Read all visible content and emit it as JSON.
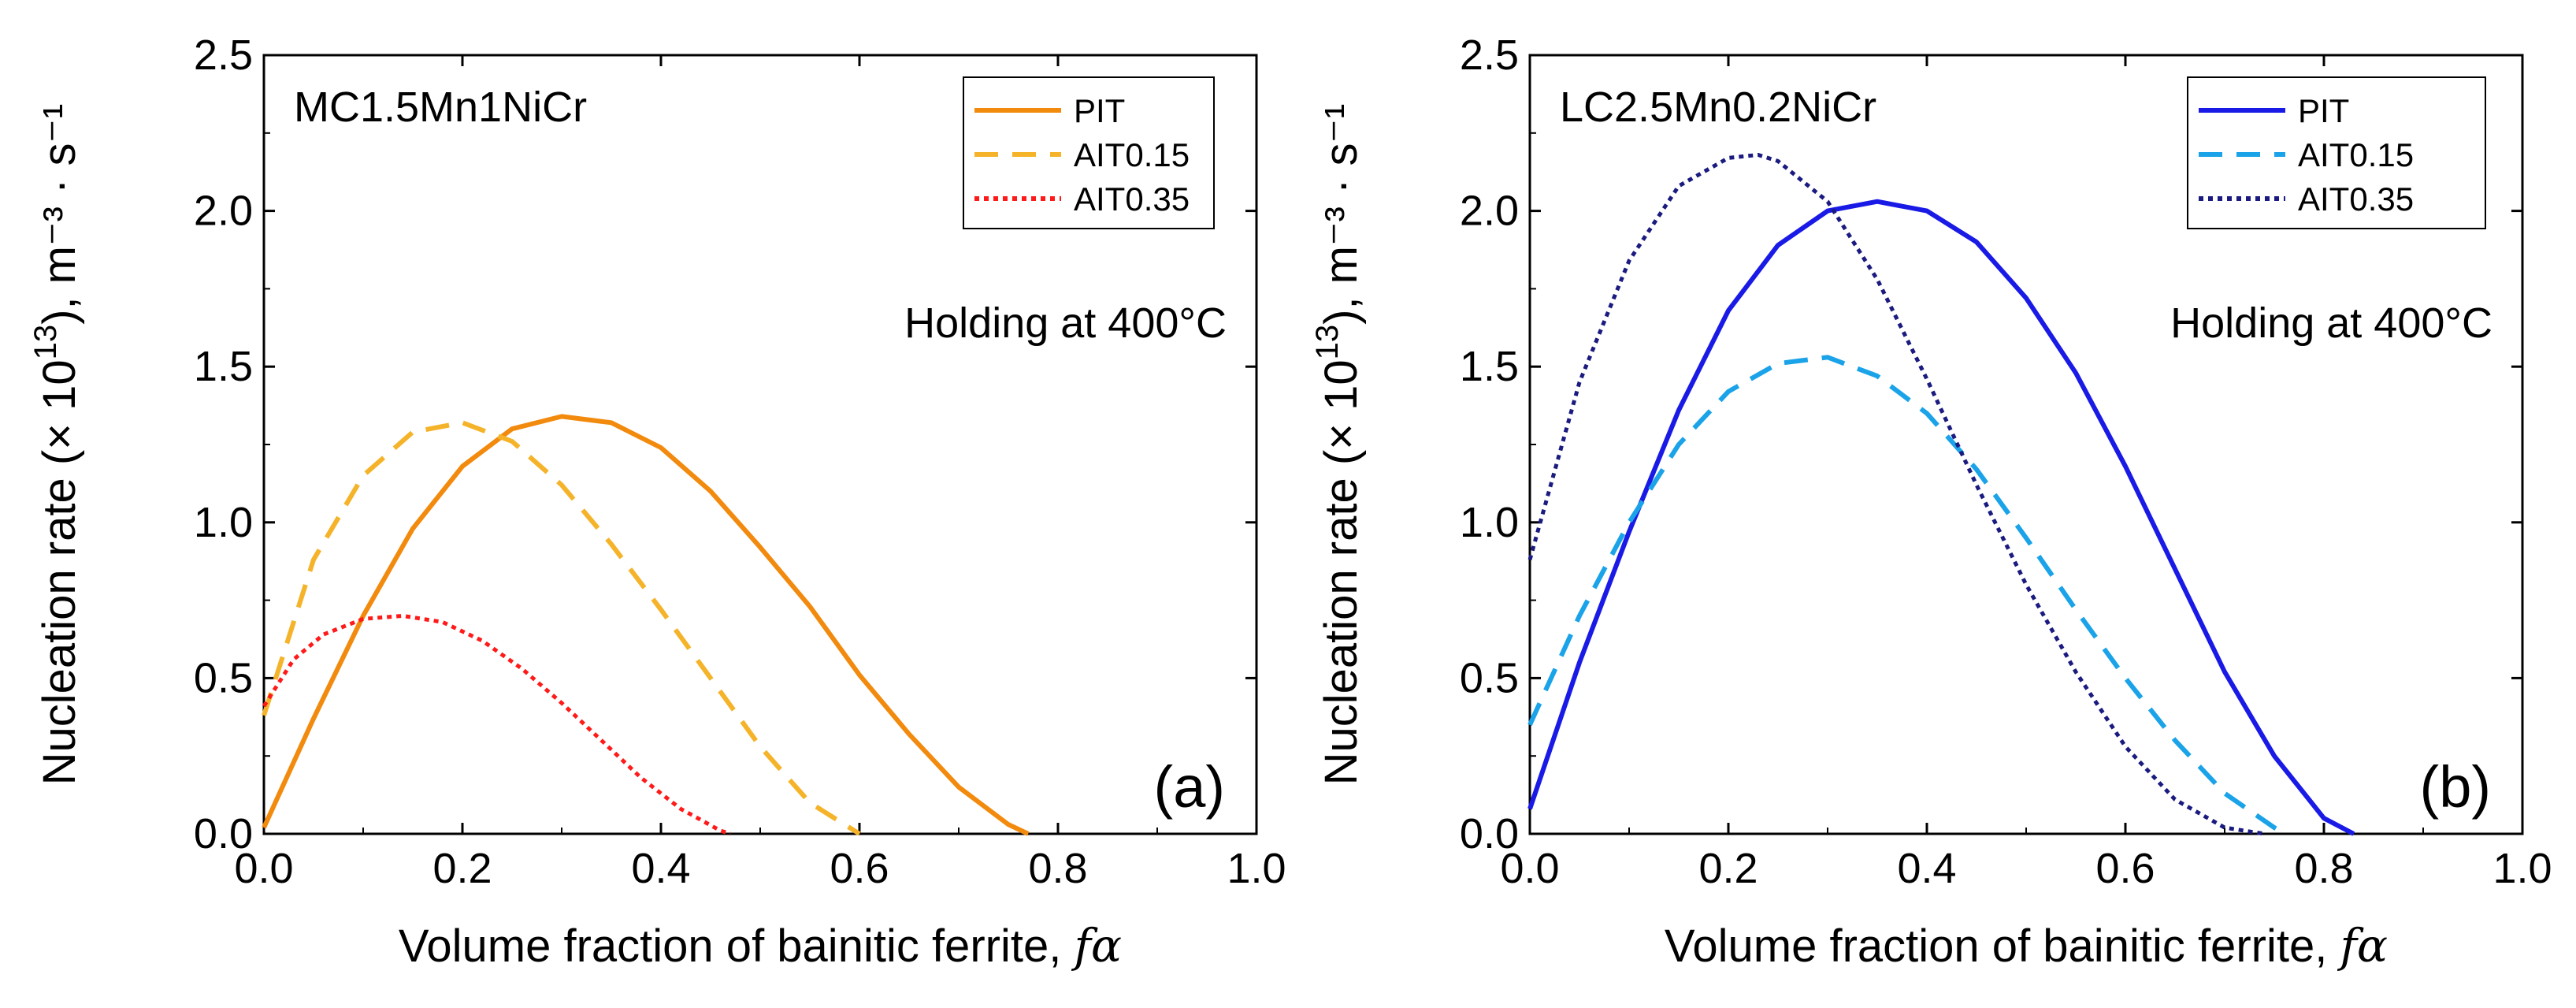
{
  "chart_data": [
    {
      "type": "line",
      "panel": "(a)",
      "title": "MC1.5Mn1NiCr",
      "annotation": "Holding at 400°C",
      "xlabel": "Volume fraction of bainitic ferrite, ",
      "xlabel_symbol": "fα",
      "ylabel_text": "Nucleation rate (× 10",
      "ylabel_exp": "13",
      "ylabel_units": "), m⁻³ · s⁻¹",
      "xlim": [
        0,
        1.0
      ],
      "ylim": [
        0,
        2.5
      ],
      "xticks": [
        0.0,
        0.2,
        0.4,
        0.6,
        0.8,
        1.0
      ],
      "yticks": [
        0.0,
        0.5,
        1.0,
        1.5,
        2.0,
        2.5
      ],
      "xtick_labels": [
        "0.0",
        "0.2",
        "0.4",
        "0.6",
        "0.8",
        "1.0"
      ],
      "ytick_labels": [
        "0.0",
        "0.5",
        "1.0",
        "1.5",
        "2.0",
        "2.5"
      ],
      "legend_position": "top-right",
      "series": [
        {
          "name": "PIT",
          "color": "#f28a0e",
          "style": "solid",
          "x": [
            0.0,
            0.05,
            0.1,
            0.15,
            0.2,
            0.25,
            0.3,
            0.35,
            0.4,
            0.45,
            0.5,
            0.55,
            0.6,
            0.65,
            0.7,
            0.75,
            0.77
          ],
          "y": [
            0.02,
            0.37,
            0.7,
            0.98,
            1.18,
            1.3,
            1.34,
            1.32,
            1.24,
            1.1,
            0.92,
            0.73,
            0.51,
            0.32,
            0.15,
            0.03,
            0.0
          ]
        },
        {
          "name": "AIT0.15",
          "color": "#f5b32a",
          "style": "dashed",
          "x": [
            0.0,
            0.05,
            0.1,
            0.15,
            0.2,
            0.25,
            0.3,
            0.35,
            0.4,
            0.45,
            0.5,
            0.55,
            0.6
          ],
          "y": [
            0.38,
            0.88,
            1.15,
            1.29,
            1.32,
            1.26,
            1.12,
            0.93,
            0.72,
            0.5,
            0.28,
            0.1,
            0.0
          ]
        },
        {
          "name": "AIT0.35",
          "color": "#ff1a1a",
          "style": "dotted",
          "x": [
            0.0,
            0.03,
            0.06,
            0.1,
            0.14,
            0.18,
            0.22,
            0.26,
            0.3,
            0.34,
            0.38,
            0.42,
            0.46,
            0.47
          ],
          "y": [
            0.41,
            0.56,
            0.64,
            0.69,
            0.7,
            0.68,
            0.62,
            0.53,
            0.42,
            0.3,
            0.18,
            0.08,
            0.01,
            0.0
          ]
        }
      ]
    },
    {
      "type": "line",
      "panel": "(b)",
      "title": "LC2.5Mn0.2NiCr",
      "annotation": "Holding at 400°C",
      "xlabel": "Volume fraction of bainitic ferrite, ",
      "xlabel_symbol": "fα",
      "ylabel_text": "Nucleation rate (× 10",
      "ylabel_exp": "13",
      "ylabel_units": "), m⁻³ · s⁻¹",
      "xlim": [
        0,
        1.0
      ],
      "ylim": [
        0,
        2.5
      ],
      "xticks": [
        0.0,
        0.2,
        0.4,
        0.6,
        0.8,
        1.0
      ],
      "yticks": [
        0.0,
        0.5,
        1.0,
        1.5,
        2.0,
        2.5
      ],
      "xtick_labels": [
        "0.0",
        "0.2",
        "0.4",
        "0.6",
        "0.8",
        "1.0"
      ],
      "ytick_labels": [
        "0.0",
        "0.5",
        "1.0",
        "1.5",
        "2.0",
        "2.5"
      ],
      "legend_position": "top-right",
      "series": [
        {
          "name": "PIT",
          "color": "#1a1ae6",
          "style": "solid",
          "x": [
            0.0,
            0.05,
            0.1,
            0.15,
            0.2,
            0.25,
            0.3,
            0.35,
            0.4,
            0.45,
            0.5,
            0.55,
            0.6,
            0.65,
            0.7,
            0.75,
            0.8,
            0.83
          ],
          "y": [
            0.08,
            0.55,
            0.97,
            1.36,
            1.68,
            1.89,
            2.0,
            2.03,
            2.0,
            1.9,
            1.72,
            1.48,
            1.18,
            0.85,
            0.52,
            0.25,
            0.05,
            0.0
          ]
        },
        {
          "name": "AIT0.15",
          "color": "#1aa3e8",
          "style": "dashed",
          "x": [
            0.0,
            0.05,
            0.1,
            0.15,
            0.2,
            0.25,
            0.3,
            0.35,
            0.4,
            0.45,
            0.5,
            0.55,
            0.6,
            0.65,
            0.7,
            0.75,
            0.76
          ],
          "y": [
            0.35,
            0.7,
            1.0,
            1.25,
            1.42,
            1.51,
            1.53,
            1.47,
            1.35,
            1.17,
            0.95,
            0.72,
            0.5,
            0.3,
            0.13,
            0.02,
            0.0
          ]
        },
        {
          "name": "AIT0.35",
          "color": "#1a1a80",
          "style": "dotted",
          "x": [
            0.0,
            0.05,
            0.1,
            0.15,
            0.2,
            0.23,
            0.25,
            0.3,
            0.35,
            0.4,
            0.45,
            0.5,
            0.55,
            0.6,
            0.65,
            0.7,
            0.74
          ],
          "y": [
            0.88,
            1.45,
            1.84,
            2.08,
            2.17,
            2.18,
            2.16,
            2.03,
            1.78,
            1.46,
            1.12,
            0.8,
            0.52,
            0.28,
            0.11,
            0.02,
            0.0
          ]
        }
      ]
    }
  ]
}
